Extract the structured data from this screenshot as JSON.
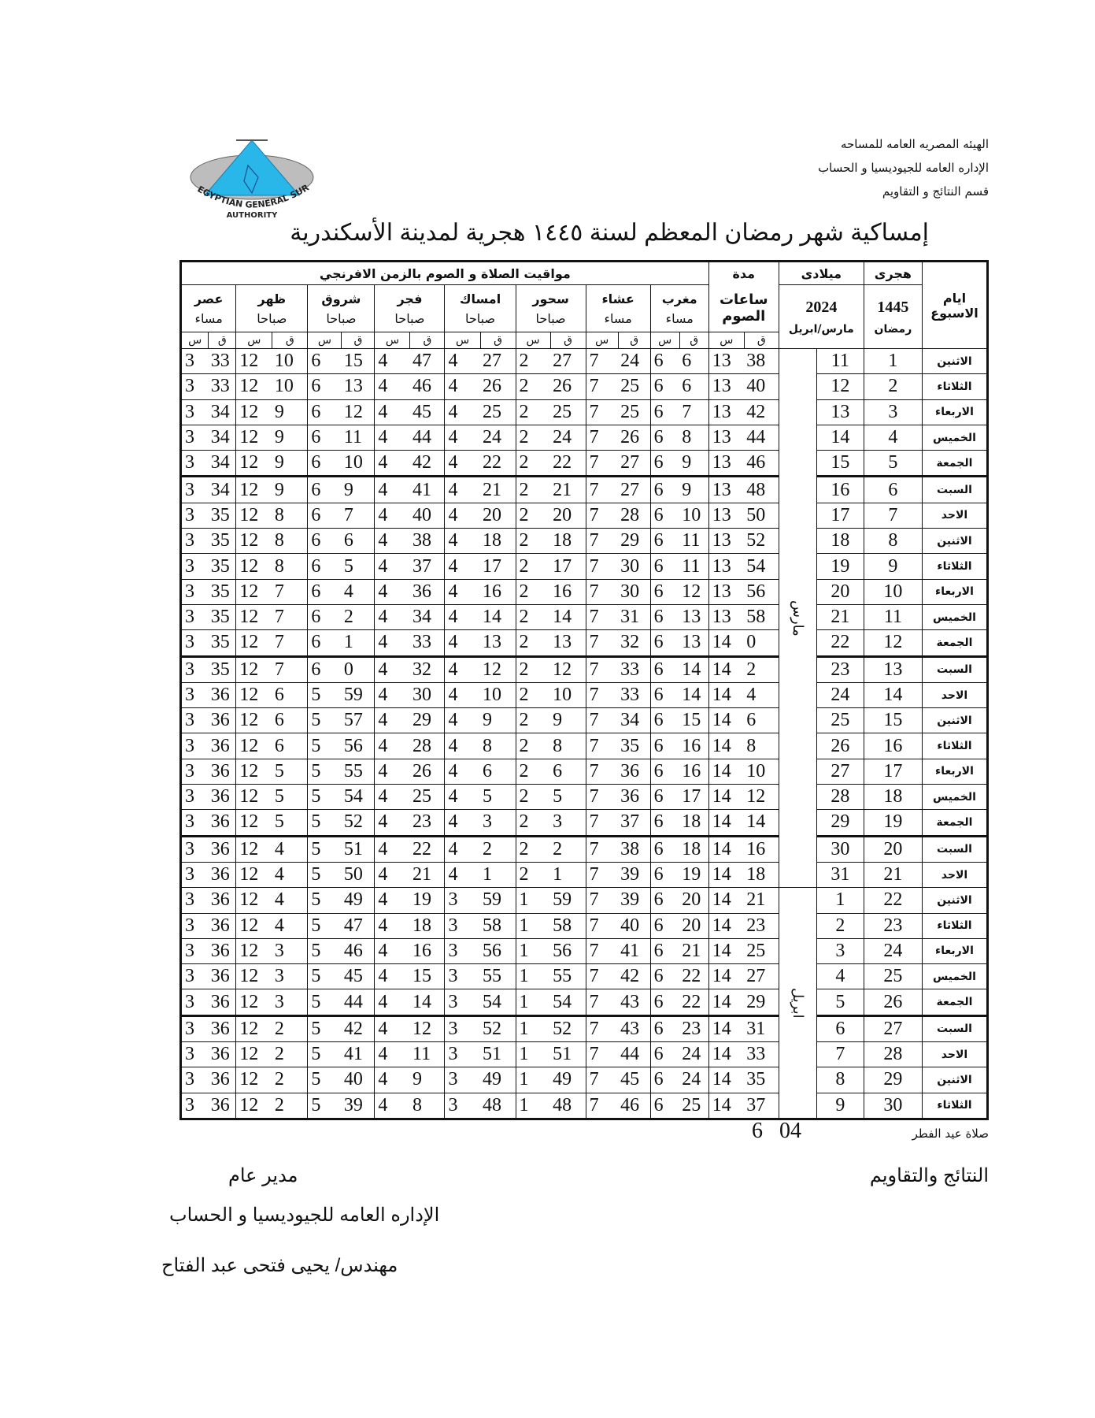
{
  "header": {
    "lines": [
      "الهيئه المصريه العامه للمساحه",
      "الإداره العامه للجيوديسيا و الحساب",
      "قسم النتائج و التقاويم"
    ]
  },
  "logo": {
    "text_en": "EGYPTIAN GENERAL SURVEY AUTHORITY",
    "text_ar": "الهيئة المصرية العامة للمساحة",
    "color": "#29b6e8"
  },
  "title": "إمساكية شهر رمضان المعظم لسنة ١٤٤٥ هجرية لمدينة الأسكندرية",
  "table": {
    "group_header": "مواقيت الصلاة و الصوم بالزمن الافرنجي",
    "days_header": "ايام الاسبوع",
    "hijri": {
      "label": "هجرى",
      "year": "1445",
      "month": "رمضان"
    },
    "gregorian": {
      "label": "ميلادى",
      "year": "2024",
      "months": "مارس/ابريل"
    },
    "duration": {
      "label1": "مدة",
      "label2": "ساعات",
      "label3": "الصوم"
    },
    "columns": [
      {
        "name": "مغرب",
        "period": "مساء"
      },
      {
        "name": "عشاء",
        "period": "مساء"
      },
      {
        "name": "سحور",
        "period": "صباحا"
      },
      {
        "name": "امساك",
        "period": "صباحا"
      },
      {
        "name": "فجر",
        "period": "صباحا"
      },
      {
        "name": "شروق",
        "period": "صباحا"
      },
      {
        "name": "ظهر",
        "period": "صباحا"
      },
      {
        "name": "عصر",
        "period": "مساء"
      }
    ],
    "minute_label": "ق",
    "hour_label": "س",
    "month_labels": [
      "مارس",
      "ابريل"
    ],
    "rows": [
      [
        "الاثنين",
        1,
        11,
        [
          13,
          38
        ],
        [
          6,
          6
        ],
        [
          7,
          24
        ],
        [
          2,
          27
        ],
        [
          4,
          27
        ],
        [
          4,
          47
        ],
        [
          6,
          15
        ],
        [
          12,
          10
        ],
        [
          3,
          33
        ]
      ],
      [
        "الثلاثاء",
        2,
        12,
        [
          13,
          40
        ],
        [
          6,
          6
        ],
        [
          7,
          25
        ],
        [
          2,
          26
        ],
        [
          4,
          26
        ],
        [
          4,
          46
        ],
        [
          6,
          13
        ],
        [
          12,
          10
        ],
        [
          3,
          33
        ]
      ],
      [
        "الاربعاء",
        3,
        13,
        [
          13,
          42
        ],
        [
          6,
          7
        ],
        [
          7,
          25
        ],
        [
          2,
          25
        ],
        [
          4,
          25
        ],
        [
          4,
          45
        ],
        [
          6,
          12
        ],
        [
          12,
          9
        ],
        [
          3,
          34
        ]
      ],
      [
        "الخميس",
        4,
        14,
        [
          13,
          44
        ],
        [
          6,
          8
        ],
        [
          7,
          26
        ],
        [
          2,
          24
        ],
        [
          4,
          24
        ],
        [
          4,
          44
        ],
        [
          6,
          11
        ],
        [
          12,
          9
        ],
        [
          3,
          34
        ]
      ],
      [
        "الجمعة",
        5,
        15,
        [
          13,
          46
        ],
        [
          6,
          9
        ],
        [
          7,
          27
        ],
        [
          2,
          22
        ],
        [
          4,
          22
        ],
        [
          4,
          42
        ],
        [
          6,
          10
        ],
        [
          12,
          9
        ],
        [
          3,
          34
        ]
      ],
      [
        "السبت",
        6,
        16,
        [
          13,
          48
        ],
        [
          6,
          9
        ],
        [
          7,
          27
        ],
        [
          2,
          21
        ],
        [
          4,
          21
        ],
        [
          4,
          41
        ],
        [
          6,
          9
        ],
        [
          12,
          9
        ],
        [
          3,
          34
        ]
      ],
      [
        "الاحد",
        7,
        17,
        [
          13,
          50
        ],
        [
          6,
          10
        ],
        [
          7,
          28
        ],
        [
          2,
          20
        ],
        [
          4,
          20
        ],
        [
          4,
          40
        ],
        [
          6,
          7
        ],
        [
          12,
          8
        ],
        [
          3,
          35
        ]
      ],
      [
        "الاثنين",
        8,
        18,
        [
          13,
          52
        ],
        [
          6,
          11
        ],
        [
          7,
          29
        ],
        [
          2,
          18
        ],
        [
          4,
          18
        ],
        [
          4,
          38
        ],
        [
          6,
          6
        ],
        [
          12,
          8
        ],
        [
          3,
          35
        ]
      ],
      [
        "الثلاثاء",
        9,
        19,
        [
          13,
          54
        ],
        [
          6,
          11
        ],
        [
          7,
          30
        ],
        [
          2,
          17
        ],
        [
          4,
          17
        ],
        [
          4,
          37
        ],
        [
          6,
          5
        ],
        [
          12,
          8
        ],
        [
          3,
          35
        ]
      ],
      [
        "الاربعاء",
        10,
        20,
        [
          13,
          56
        ],
        [
          6,
          12
        ],
        [
          7,
          30
        ],
        [
          2,
          16
        ],
        [
          4,
          16
        ],
        [
          4,
          36
        ],
        [
          6,
          4
        ],
        [
          12,
          7
        ],
        [
          3,
          35
        ]
      ],
      [
        "الخميس",
        11,
        21,
        [
          13,
          58
        ],
        [
          6,
          13
        ],
        [
          7,
          31
        ],
        [
          2,
          14
        ],
        [
          4,
          14
        ],
        [
          4,
          34
        ],
        [
          6,
          2
        ],
        [
          12,
          7
        ],
        [
          3,
          35
        ]
      ],
      [
        "الجمعة",
        12,
        22,
        [
          14,
          0
        ],
        [
          6,
          13
        ],
        [
          7,
          32
        ],
        [
          2,
          13
        ],
        [
          4,
          13
        ],
        [
          4,
          33
        ],
        [
          6,
          1
        ],
        [
          12,
          7
        ],
        [
          3,
          35
        ]
      ],
      [
        "السبت",
        13,
        23,
        [
          14,
          2
        ],
        [
          6,
          14
        ],
        [
          7,
          33
        ],
        [
          2,
          12
        ],
        [
          4,
          12
        ],
        [
          4,
          32
        ],
        [
          6,
          0
        ],
        [
          12,
          7
        ],
        [
          3,
          35
        ]
      ],
      [
        "الاحد",
        14,
        24,
        [
          14,
          4
        ],
        [
          6,
          14
        ],
        [
          7,
          33
        ],
        [
          2,
          10
        ],
        [
          4,
          10
        ],
        [
          4,
          30
        ],
        [
          5,
          59
        ],
        [
          12,
          6
        ],
        [
          3,
          36
        ]
      ],
      [
        "الاثنين",
        15,
        25,
        [
          14,
          6
        ],
        [
          6,
          15
        ],
        [
          7,
          34
        ],
        [
          2,
          9
        ],
        [
          4,
          9
        ],
        [
          4,
          29
        ],
        [
          5,
          57
        ],
        [
          12,
          6
        ],
        [
          3,
          36
        ]
      ],
      [
        "الثلاثاء",
        16,
        26,
        [
          14,
          8
        ],
        [
          6,
          16
        ],
        [
          7,
          35
        ],
        [
          2,
          8
        ],
        [
          4,
          8
        ],
        [
          4,
          28
        ],
        [
          5,
          56
        ],
        [
          12,
          6
        ],
        [
          3,
          36
        ]
      ],
      [
        "الاربعاء",
        17,
        27,
        [
          14,
          10
        ],
        [
          6,
          16
        ],
        [
          7,
          36
        ],
        [
          2,
          6
        ],
        [
          4,
          6
        ],
        [
          4,
          26
        ],
        [
          5,
          55
        ],
        [
          12,
          5
        ],
        [
          3,
          36
        ]
      ],
      [
        "الخميس",
        18,
        28,
        [
          14,
          12
        ],
        [
          6,
          17
        ],
        [
          7,
          36
        ],
        [
          2,
          5
        ],
        [
          4,
          5
        ],
        [
          4,
          25
        ],
        [
          5,
          54
        ],
        [
          12,
          5
        ],
        [
          3,
          36
        ]
      ],
      [
        "الجمعة",
        19,
        29,
        [
          14,
          14
        ],
        [
          6,
          18
        ],
        [
          7,
          37
        ],
        [
          2,
          3
        ],
        [
          4,
          3
        ],
        [
          4,
          23
        ],
        [
          5,
          52
        ],
        [
          12,
          5
        ],
        [
          3,
          36
        ]
      ],
      [
        "السبت",
        20,
        30,
        [
          14,
          16
        ],
        [
          6,
          18
        ],
        [
          7,
          38
        ],
        [
          2,
          2
        ],
        [
          4,
          2
        ],
        [
          4,
          22
        ],
        [
          5,
          51
        ],
        [
          12,
          4
        ],
        [
          3,
          36
        ]
      ],
      [
        "الاحد",
        21,
        31,
        [
          14,
          18
        ],
        [
          6,
          19
        ],
        [
          7,
          39
        ],
        [
          2,
          1
        ],
        [
          4,
          1
        ],
        [
          4,
          21
        ],
        [
          5,
          50
        ],
        [
          12,
          4
        ],
        [
          3,
          36
        ]
      ],
      [
        "الاثنين",
        22,
        1,
        [
          14,
          21
        ],
        [
          6,
          20
        ],
        [
          7,
          39
        ],
        [
          1,
          59
        ],
        [
          3,
          59
        ],
        [
          4,
          19
        ],
        [
          5,
          49
        ],
        [
          12,
          4
        ],
        [
          3,
          36
        ]
      ],
      [
        "الثلاثاء",
        23,
        2,
        [
          14,
          23
        ],
        [
          6,
          20
        ],
        [
          7,
          40
        ],
        [
          1,
          58
        ],
        [
          3,
          58
        ],
        [
          4,
          18
        ],
        [
          5,
          47
        ],
        [
          12,
          4
        ],
        [
          3,
          36
        ]
      ],
      [
        "الاربعاء",
        24,
        3,
        [
          14,
          25
        ],
        [
          6,
          21
        ],
        [
          7,
          41
        ],
        [
          1,
          56
        ],
        [
          3,
          56
        ],
        [
          4,
          16
        ],
        [
          5,
          46
        ],
        [
          12,
          3
        ],
        [
          3,
          36
        ]
      ],
      [
        "الخميس",
        25,
        4,
        [
          14,
          27
        ],
        [
          6,
          22
        ],
        [
          7,
          42
        ],
        [
          1,
          55
        ],
        [
          3,
          55
        ],
        [
          4,
          15
        ],
        [
          5,
          45
        ],
        [
          12,
          3
        ],
        [
          3,
          36
        ]
      ],
      [
        "الجمعة",
        26,
        5,
        [
          14,
          29
        ],
        [
          6,
          22
        ],
        [
          7,
          43
        ],
        [
          1,
          54
        ],
        [
          3,
          54
        ],
        [
          4,
          14
        ],
        [
          5,
          44
        ],
        [
          12,
          3
        ],
        [
          3,
          36
        ]
      ],
      [
        "السبت",
        27,
        6,
        [
          14,
          31
        ],
        [
          6,
          23
        ],
        [
          7,
          43
        ],
        [
          1,
          52
        ],
        [
          3,
          52
        ],
        [
          4,
          12
        ],
        [
          5,
          42
        ],
        [
          12,
          2
        ],
        [
          3,
          36
        ]
      ],
      [
        "الاحد",
        28,
        7,
        [
          14,
          33
        ],
        [
          6,
          24
        ],
        [
          7,
          44
        ],
        [
          1,
          51
        ],
        [
          3,
          51
        ],
        [
          4,
          11
        ],
        [
          5,
          41
        ],
        [
          12,
          2
        ],
        [
          3,
          36
        ]
      ],
      [
        "الاثنين",
        29,
        8,
        [
          14,
          35
        ],
        [
          6,
          24
        ],
        [
          7,
          45
        ],
        [
          1,
          49
        ],
        [
          3,
          49
        ],
        [
          4,
          9
        ],
        [
          5,
          40
        ],
        [
          12,
          2
        ],
        [
          3,
          36
        ]
      ],
      [
        "الثلاثاء",
        30,
        9,
        [
          14,
          37
        ],
        [
          6,
          25
        ],
        [
          7,
          46
        ],
        [
          1,
          48
        ],
        [
          3,
          48
        ],
        [
          4,
          8
        ],
        [
          5,
          39
        ],
        [
          12,
          2
        ],
        [
          3,
          36
        ]
      ]
    ]
  },
  "footer": {
    "eid_label": "صلاة عيد الفطر",
    "eid_time": "6 04",
    "dept": "النتائج والتقاويم",
    "manager_title": "مدير عام",
    "manager_dept": "الإداره العامه للجيوديسيا و الحساب",
    "manager_name": "مهندس/ يحيى فتحى عبد الفتاح"
  }
}
